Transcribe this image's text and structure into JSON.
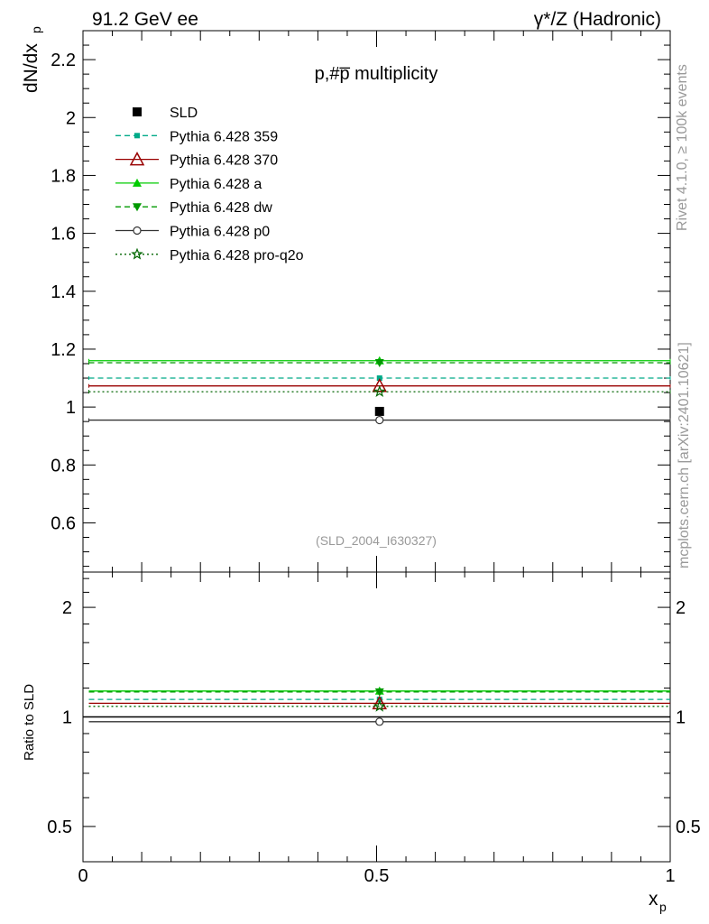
{
  "header": {
    "energy_label": "91.2 GeV ee",
    "process_label": "γ*/Z (Hadronic)"
  },
  "side_labels": {
    "rivet": "Rivet 4.1.0, ≥ 100k events",
    "source": "mcplots.cern.ch [arXiv:2401.10621]"
  },
  "watermark": "(SLD_2004_I630327)",
  "chart_data": {
    "type": "scatter",
    "title": "p,#p̅ multiplicity",
    "xlabel": "x",
    "xlabel_sub": "p",
    "ylabel": "dN/dx",
    "ylabel_sub": "p",
    "xlim": [
      0,
      1
    ],
    "ylim": [
      0.43,
      2.3
    ],
    "x_ticks": [
      "0",
      "0.5",
      "1"
    ],
    "y_ticks": [
      "0.6",
      "0.8",
      "1",
      "1.2",
      "1.4",
      "1.6",
      "1.8",
      "2",
      "2.2"
    ],
    "x_range": [
      0.01,
      1.0
    ],
    "x_center": 0.505,
    "data": {
      "name": "SLD",
      "value": 0.985
    },
    "series": [
      {
        "name": "Pythia 6.428 359",
        "value": 1.1,
        "ratio": 1.117,
        "color": "#00aa88",
        "dash": "dashed",
        "marker": "square-small"
      },
      {
        "name": "Pythia 6.428 370",
        "value": 1.073,
        "ratio": 1.09,
        "color": "#990000",
        "dash": "solid",
        "marker": "triangle-open"
      },
      {
        "name": "Pythia 6.428 a",
        "value": 1.16,
        "ratio": 1.178,
        "color": "#00cc00",
        "dash": "solid",
        "marker": "triangle"
      },
      {
        "name": "Pythia 6.428 dw",
        "value": 1.153,
        "ratio": 1.171,
        "color": "#009900",
        "dash": "dashed",
        "marker": "triangle-down"
      },
      {
        "name": "Pythia 6.428 p0",
        "value": 0.955,
        "ratio": 0.97,
        "color": "#333333",
        "dash": "solid",
        "marker": "circle-open"
      },
      {
        "name": "Pythia 6.428 pro-q2o",
        "value": 1.053,
        "ratio": 1.069,
        "color": "#006600",
        "dash": "dotted",
        "marker": "star-open"
      }
    ],
    "ratio_panel": {
      "ylabel": "Ratio to SLD",
      "yscale": "log",
      "ylim": [
        0.4,
        2.5
      ],
      "y_ticks": [
        "0.5",
        "1",
        "2"
      ]
    }
  }
}
